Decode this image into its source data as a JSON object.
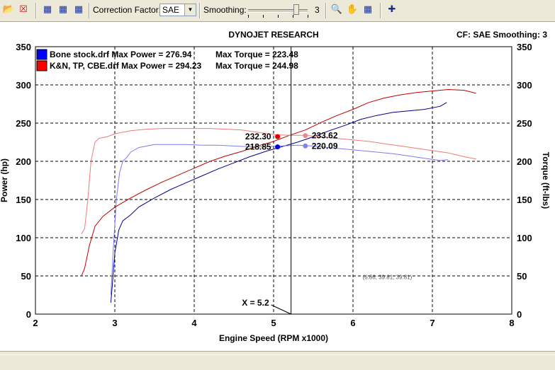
{
  "toolbar": {
    "icons": [
      "open-folder-icon",
      "close-file-icon",
      "grid-view-1-icon",
      "grid-view-2-icon",
      "grid-view-3-icon",
      "zoom-tool-icon",
      "hand-tool-icon",
      "pan-tool-icon",
      "crosshair-tool-icon"
    ],
    "correction_factor_label": "Correction Factor:",
    "correction_factor_value": "SAE",
    "smoothing_label": "Smoothing:",
    "smoothing_value": "3",
    "smoothing_level": 3,
    "smoothing_max": 5
  },
  "chart_data": {
    "type": "line",
    "title": "DYNOJET RESEARCH",
    "top_right_text": "CF: SAE  Smoothing: 3",
    "xlabel": "Engine Speed (RPM x1000)",
    "ylabel_left": "Power (hp)",
    "ylabel_right": "Torque (ft-lbs)",
    "xlim": [
      2,
      8
    ],
    "ylim": [
      0,
      350
    ],
    "xticks": [
      "2",
      "3",
      "4",
      "5",
      "6",
      "7",
      "8"
    ],
    "yticks": [
      "0",
      "50",
      "100",
      "150",
      "200",
      "250",
      "300",
      "350"
    ],
    "grid": true,
    "legend_placement": "top-left",
    "legend": [
      {
        "file": "Bone stock.drf",
        "max_power_text": "Max Power = 276.94",
        "max_torque_text": "Max Torque = 223.48",
        "color": "#0000ff"
      },
      {
        "file": "K&N, TP, CBE.drf",
        "max_power_text": "Max Power = 294.23",
        "max_torque_text": "Max Torque = 244.98",
        "color": "#ff0000"
      }
    ],
    "cursor_x": 5.22,
    "cursor_label": "X = 5.2",
    "coord_readout": "(6.86; 39.81; 39.81)",
    "markers": [
      {
        "label": "232.30",
        "x": 5.05,
        "y": 232.3,
        "color": "#dd0000",
        "side": "left"
      },
      {
        "label": "218.85",
        "x": 5.05,
        "y": 218.85,
        "color": "#0000cc",
        "side": "left"
      },
      {
        "label": "233.62",
        "x": 5.4,
        "y": 233.62,
        "color": "#ee8888",
        "side": "right"
      },
      {
        "label": "220.09",
        "x": 5.4,
        "y": 220.09,
        "color": "#7788ee",
        "side": "right"
      }
    ],
    "series": [
      {
        "name": "Bone stock.drf",
        "measure": "Power",
        "color": "#00008b",
        "x": [
          2.95,
          2.97,
          3.0,
          3.05,
          3.1,
          3.2,
          3.3,
          3.5,
          3.7,
          3.9,
          4.1,
          4.3,
          4.5,
          4.7,
          4.9,
          5.1,
          5.3,
          5.5,
          5.7,
          5.9,
          6.1,
          6.3,
          6.5,
          6.7,
          6.9,
          7.1,
          7.18
        ],
        "y": [
          15,
          40,
          80,
          110,
          122,
          130,
          140,
          152,
          163,
          172,
          181,
          190,
          198,
          206,
          213,
          219,
          225,
          232,
          240,
          247,
          255,
          260,
          264,
          266,
          268,
          272,
          277
        ]
      },
      {
        "name": "Bone stock.drf",
        "measure": "Torque",
        "color": "#7b7bef",
        "x": [
          2.95,
          2.98,
          3.02,
          3.06,
          3.1,
          3.15,
          3.2,
          3.3,
          3.5,
          3.7,
          3.9,
          4.1,
          4.3,
          4.5,
          4.7,
          4.9,
          5.1,
          5.3,
          5.5,
          5.7,
          5.9,
          6.1,
          6.3,
          6.5,
          6.7,
          6.9,
          7.1,
          7.2
        ],
        "y": [
          25,
          85,
          150,
          185,
          200,
          205,
          212,
          218,
          222,
          222,
          222,
          221,
          221,
          220,
          219,
          219,
          220,
          221,
          220,
          218,
          216,
          214,
          212,
          210,
          207,
          204,
          201,
          202
        ]
      },
      {
        "name": "K&N, TP, CBE.drf",
        "measure": "Power",
        "color": "#c00000",
        "x": [
          2.58,
          2.62,
          2.68,
          2.75,
          2.85,
          3.0,
          3.2,
          3.4,
          3.6,
          3.8,
          4.0,
          4.2,
          4.4,
          4.6,
          4.8,
          5.0,
          5.2,
          5.4,
          5.6,
          5.8,
          6.0,
          6.2,
          6.4,
          6.6,
          6.8,
          7.0,
          7.2,
          7.4,
          7.55
        ],
        "y": [
          50,
          60,
          90,
          115,
          128,
          140,
          152,
          163,
          173,
          182,
          191,
          200,
          207,
          213,
          220,
          226,
          234,
          241,
          251,
          260,
          268,
          277,
          283,
          287,
          290,
          292,
          294,
          293,
          289
        ]
      },
      {
        "name": "K&N, TP, CBE.drf",
        "measure": "Torque",
        "color": "#f07a7a",
        "x": [
          2.58,
          2.62,
          2.66,
          2.7,
          2.75,
          2.8,
          2.9,
          3.0,
          3.2,
          3.4,
          3.6,
          3.8,
          4.0,
          4.2,
          4.4,
          4.6,
          4.8,
          5.0,
          5.2,
          5.4,
          5.6,
          5.8,
          6.0,
          6.2,
          6.4,
          6.6,
          6.8,
          7.0,
          7.2,
          7.4,
          7.55
        ],
        "y": [
          105,
          112,
          150,
          200,
          225,
          230,
          232,
          236,
          240,
          242,
          243,
          243,
          243,
          243,
          242,
          241,
          238,
          235,
          234,
          234,
          232,
          230,
          228,
          226,
          223,
          220,
          217,
          214,
          211,
          206,
          203
        ]
      }
    ]
  }
}
